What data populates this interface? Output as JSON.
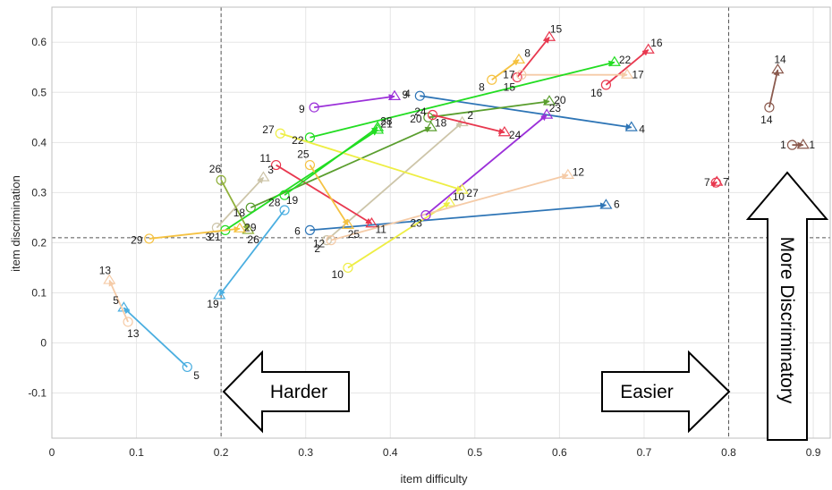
{
  "chart_data": {
    "type": "scatter",
    "xlabel": "item difficulty",
    "ylabel": "item discrimination",
    "xlim": [
      0,
      0.92
    ],
    "ylim": [
      -0.19,
      0.67
    ],
    "x_ticks": [
      0,
      0.1,
      0.2,
      0.3,
      0.4,
      0.5,
      0.6,
      0.7,
      0.8,
      0.9
    ],
    "x_tick_labels": [
      "0",
      "0.1",
      "0.2",
      "0.3",
      "0.4",
      "0.5",
      "0.6",
      "0.7",
      "0.8",
      "0.9"
    ],
    "y_ticks": [
      -0.1,
      0,
      0.1,
      0.2,
      0.3,
      0.4,
      0.5,
      0.6
    ],
    "y_tick_labels": [
      "-0.1",
      "0",
      "0.1",
      "0.2",
      "0.3",
      "0.4",
      "0.5",
      "0.6"
    ],
    "grid": true,
    "reference_lines": {
      "x": [
        0.2,
        0.8
      ],
      "y": [
        0.21
      ]
    },
    "start_marker": "circle",
    "end_marker": "triangle",
    "items": [
      {
        "label": "1",
        "color": "#8b5a4e",
        "from": [
          0.875,
          0.395
        ],
        "to": [
          0.888,
          0.395
        ]
      },
      {
        "label": "2",
        "color": "#cdc5a9",
        "from": [
          0.325,
          0.205
        ],
        "to": [
          0.485,
          0.44
        ]
      },
      {
        "label": "3",
        "color": "#cdc5a9",
        "from": [
          0.195,
          0.23
        ],
        "to": [
          0.25,
          0.33
        ]
      },
      {
        "label": "4",
        "color": "#2e75b6",
        "from": [
          0.435,
          0.493
        ],
        "to": [
          0.685,
          0.43
        ]
      },
      {
        "label": "5",
        "color": "#4aaee0",
        "from": [
          0.16,
          -0.048
        ],
        "to": [
          0.085,
          0.07
        ]
      },
      {
        "label": "6",
        "color": "#2e75b6",
        "from": [
          0.305,
          0.225
        ],
        "to": [
          0.655,
          0.275
        ]
      },
      {
        "label": "7",
        "color": "#e8384f",
        "from": [
          0.785,
          0.32
        ],
        "to": [
          0.786,
          0.321
        ]
      },
      {
        "label": "8",
        "color": "#f5c242",
        "from": [
          0.52,
          0.525
        ],
        "to": [
          0.552,
          0.565
        ]
      },
      {
        "label": "9",
        "color": "#9b30d9",
        "from": [
          0.31,
          0.47
        ],
        "to": [
          0.405,
          0.492
        ]
      },
      {
        "label": "10",
        "color": "#eeee44",
        "from": [
          0.35,
          0.15
        ],
        "to": [
          0.47,
          0.28
        ]
      },
      {
        "label": "11",
        "color": "#e8384f",
        "from": [
          0.265,
          0.355
        ],
        "to": [
          0.378,
          0.238
        ]
      },
      {
        "label": "12",
        "color": "#f5cba7",
        "from": [
          0.33,
          0.205
        ],
        "to": [
          0.61,
          0.335
        ]
      },
      {
        "label": "13",
        "color": "#f5cba7",
        "from": [
          0.09,
          0.042
        ],
        "to": [
          0.068,
          0.125
        ]
      },
      {
        "label": "14",
        "color": "#8b5a4e",
        "from": [
          0.848,
          0.47
        ],
        "to": [
          0.858,
          0.545
        ]
      },
      {
        "label": "15",
        "color": "#e8384f",
        "from": [
          0.55,
          0.53
        ],
        "to": [
          0.588,
          0.61
        ]
      },
      {
        "label": "16",
        "color": "#e8384f",
        "from": [
          0.655,
          0.515
        ],
        "to": [
          0.705,
          0.585
        ]
      },
      {
        "label": "17",
        "color": "#f5cba7",
        "from": [
          0.555,
          0.535
        ],
        "to": [
          0.68,
          0.535
        ]
      },
      {
        "label": "18",
        "color": "#5a9e2e",
        "from": [
          0.235,
          0.27
        ],
        "to": [
          0.448,
          0.43
        ]
      },
      {
        "label": "19",
        "color": "#4aaee0",
        "from": [
          0.275,
          0.265
        ],
        "to": [
          0.198,
          0.095
        ]
      },
      {
        "label": "20",
        "color": "#5a9e2e",
        "from": [
          0.445,
          0.45
        ],
        "to": [
          0.588,
          0.482
        ]
      },
      {
        "label": "21",
        "color": "#22dd22",
        "from": [
          0.205,
          0.225
        ],
        "to": [
          0.385,
          0.425
        ]
      },
      {
        "label": "22",
        "color": "#22dd22",
        "from": [
          0.305,
          0.41
        ],
        "to": [
          0.665,
          0.56
        ]
      },
      {
        "label": "23",
        "color": "#9b30d9",
        "from": [
          0.442,
          0.255
        ],
        "to": [
          0.585,
          0.455
        ]
      },
      {
        "label": "24",
        "color": "#e8384f",
        "from": [
          0.45,
          0.455
        ],
        "to": [
          0.535,
          0.42
        ]
      },
      {
        "label": "25",
        "color": "#f5c242",
        "from": [
          0.305,
          0.355
        ],
        "to": [
          0.35,
          0.235
        ]
      },
      {
        "label": "26",
        "color": "#8fb03a",
        "from": [
          0.2,
          0.325
        ],
        "to": [
          0.232,
          0.225
        ]
      },
      {
        "label": "27",
        "color": "#eeee44",
        "from": [
          0.27,
          0.418
        ],
        "to": [
          0.485,
          0.305
        ]
      },
      {
        "label": "28",
        "color": "#22dd22",
        "from": [
          0.275,
          0.295
        ],
        "to": [
          0.385,
          0.43
        ]
      },
      {
        "label": "29",
        "color": "#f5c242",
        "from": [
          0.115,
          0.208
        ],
        "to": [
          0.222,
          0.228
        ]
      }
    ],
    "annotations": [
      {
        "text": "Harder",
        "direction": "left"
      },
      {
        "text": "Easier",
        "direction": "right"
      },
      {
        "text": "More Discriminatory",
        "direction": "up"
      }
    ]
  }
}
